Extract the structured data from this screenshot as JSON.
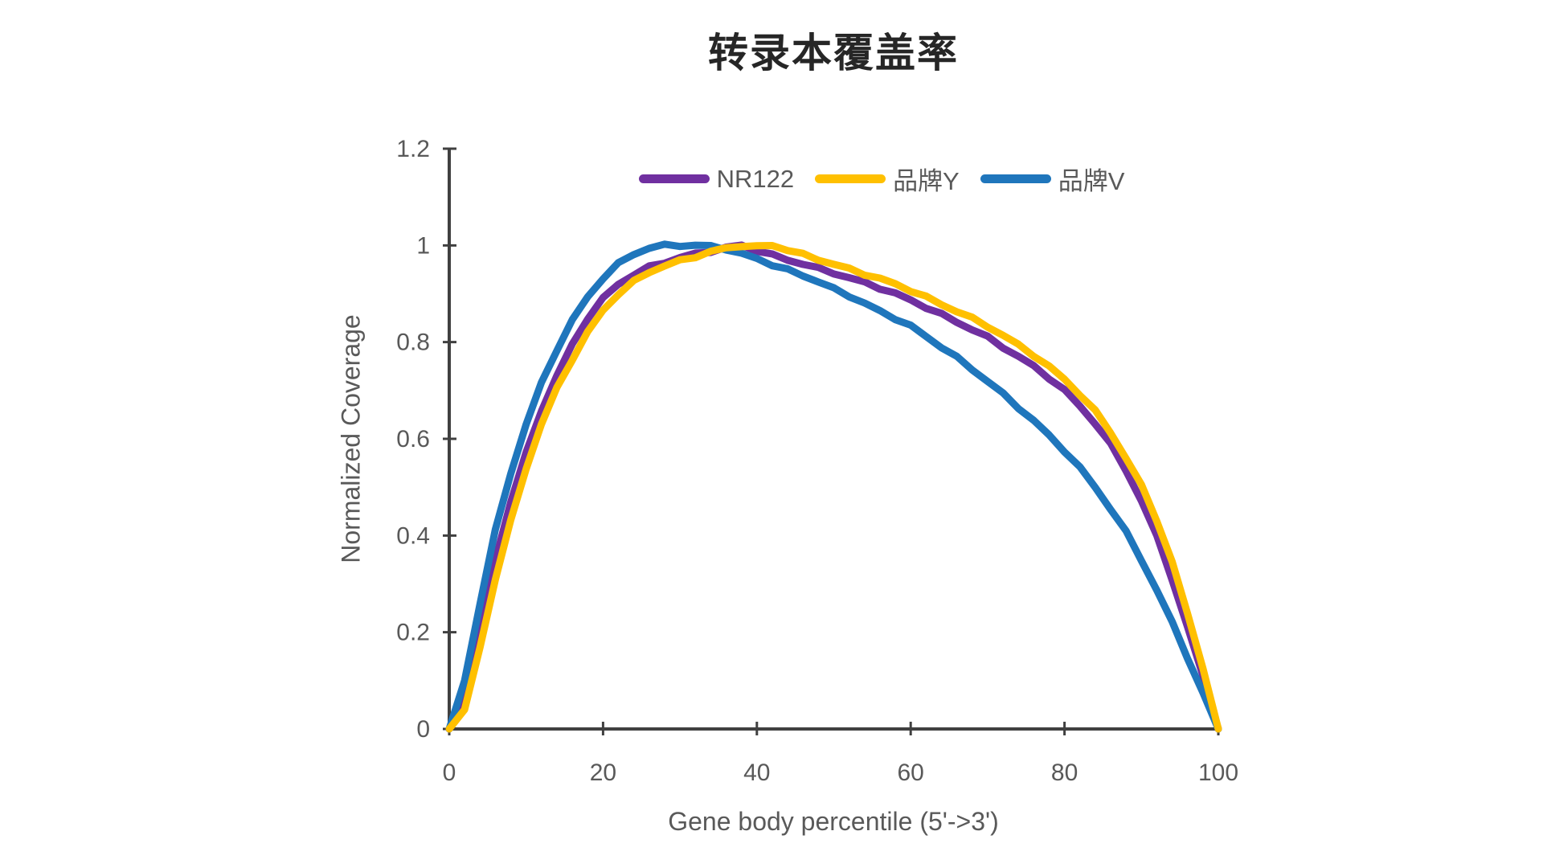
{
  "title": "转录本覆盖率",
  "chart_data": {
    "type": "line",
    "title": "转录本覆盖率",
    "xlabel": "Gene body percentile (5'->3')",
    "ylabel": "Normalized Coverage",
    "xlim": [
      0,
      100
    ],
    "ylim": [
      0,
      1.2
    ],
    "x_ticks": [
      0,
      20,
      40,
      60,
      80,
      100
    ],
    "x_tick_labels": [
      "0",
      "20",
      "40",
      "60",
      "80",
      "100"
    ],
    "y_ticks": [
      0,
      0.2,
      0.4,
      0.6,
      0.8,
      1,
      1.2
    ],
    "y_tick_labels": [
      "0",
      "0.2",
      "0.4",
      "0.6",
      "0.8",
      "1",
      "1.2"
    ],
    "grid": false,
    "legend_position": "top-center",
    "x": [
      0,
      2,
      4,
      6,
      8,
      10,
      12,
      14,
      16,
      18,
      20,
      22,
      24,
      26,
      28,
      30,
      32,
      34,
      36,
      38,
      40,
      42,
      44,
      46,
      48,
      50,
      52,
      54,
      56,
      58,
      60,
      62,
      64,
      66,
      68,
      70,
      72,
      74,
      76,
      78,
      80,
      82,
      84,
      86,
      88,
      90,
      92,
      94,
      96,
      98,
      100
    ],
    "series": [
      {
        "name": "NR122",
        "color": "#7030A0",
        "values": [
          0,
          0.06,
          0.2,
          0.35,
          0.47,
          0.57,
          0.66,
          0.73,
          0.795,
          0.85,
          0.89,
          0.92,
          0.94,
          0.955,
          0.965,
          0.975,
          0.982,
          0.988,
          0.995,
          1.0,
          0.99,
          0.98,
          0.97,
          0.962,
          0.952,
          0.943,
          0.933,
          0.923,
          0.912,
          0.9,
          0.887,
          0.872,
          0.857,
          0.842,
          0.826,
          0.81,
          0.79,
          0.77,
          0.75,
          0.726,
          0.7,
          0.668,
          0.632,
          0.588,
          0.535,
          0.472,
          0.398,
          0.31,
          0.21,
          0.11,
          0
        ]
      },
      {
        "name": "品牌Y",
        "color": "#FFC000",
        "values": [
          0,
          0.04,
          0.17,
          0.31,
          0.43,
          0.54,
          0.63,
          0.705,
          0.765,
          0.82,
          0.866,
          0.9,
          0.925,
          0.945,
          0.958,
          0.968,
          0.977,
          0.987,
          0.994,
          1.0,
          0.997,
          1.0,
          0.991,
          0.981,
          0.971,
          0.961,
          0.951,
          0.941,
          0.931,
          0.92,
          0.907,
          0.893,
          0.878,
          0.864,
          0.849,
          0.833,
          0.814,
          0.794,
          0.773,
          0.749,
          0.723,
          0.692,
          0.657,
          0.613,
          0.56,
          0.503,
          0.432,
          0.345,
          0.237,
          0.125,
          0
        ]
      },
      {
        "name": "品牌V",
        "color": "#1F76BC",
        "values": [
          0,
          0.1,
          0.26,
          0.41,
          0.53,
          0.63,
          0.715,
          0.785,
          0.845,
          0.893,
          0.933,
          0.962,
          0.982,
          0.995,
          1.0,
          1.0,
          1.0,
          0.998,
          0.993,
          0.982,
          0.973,
          0.96,
          0.949,
          0.938,
          0.925,
          0.91,
          0.896,
          0.88,
          0.864,
          0.849,
          0.833,
          0.812,
          0.79,
          0.768,
          0.744,
          0.719,
          0.693,
          0.665,
          0.637,
          0.607,
          0.575,
          0.54,
          0.5,
          0.455,
          0.407,
          0.35,
          0.287,
          0.22,
          0.148,
          0.075,
          0
        ]
      }
    ],
    "draw_order": [
      0,
      2,
      1
    ]
  },
  "style": {
    "axis_color": "#404040",
    "tick_label_color": "#595959",
    "title_color": "#262626",
    "background": "#FFFFFF",
    "line_width": 9
  }
}
